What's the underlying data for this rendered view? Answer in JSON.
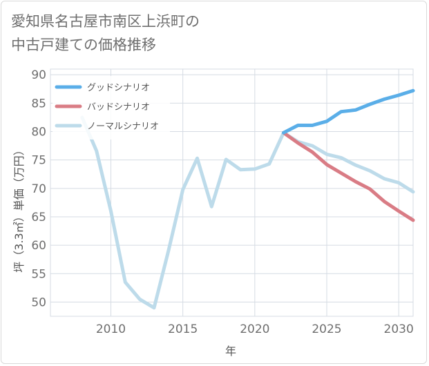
{
  "title": {
    "line1": "愛知県名古屋市南区上浜町の",
    "line2": "中古戸建ての価格推移"
  },
  "chart_data": {
    "type": "line",
    "xlabel": "年",
    "ylabel": "坪（3.3㎡）単価（万円）",
    "xlim": [
      2005.8,
      2031
    ],
    "ylim": [
      47.5,
      91
    ],
    "x_ticks": [
      2010,
      2015,
      2020,
      2025,
      2030
    ],
    "y_ticks": [
      50,
      55,
      60,
      65,
      70,
      75,
      80,
      85,
      90
    ],
    "grid": true,
    "legend_position": "top-left",
    "series": [
      {
        "name": "グッドシナリオ",
        "color": "#5aaee8",
        "x": [
          2022,
          2023,
          2024,
          2025,
          2026,
          2027,
          2028,
          2029,
          2030,
          2031
        ],
        "y": [
          79.8,
          81.1,
          81.1,
          81.8,
          83.5,
          83.8,
          84.8,
          85.7,
          86.4,
          87.2
        ]
      },
      {
        "name": "バッドシナリオ",
        "color": "#d97c85",
        "x": [
          2022,
          2023,
          2024,
          2025,
          2026,
          2027,
          2028,
          2029,
          2030,
          2031
        ],
        "y": [
          79.8,
          78.0,
          76.4,
          74.2,
          72.7,
          71.2,
          69.9,
          67.7,
          66.0,
          64.4
        ]
      },
      {
        "name": "ノーマルシナリオ",
        "color": "#bddbea",
        "x": [
          2008,
          2009,
          2010,
          2011,
          2012,
          2013,
          2014,
          2015,
          2016,
          2017,
          2018,
          2019,
          2020,
          2021,
          2022,
          2023,
          2024,
          2025,
          2026,
          2027,
          2028,
          2029,
          2030,
          2031
        ],
        "y": [
          82.5,
          76.6,
          66.0,
          53.5,
          50.5,
          49.0,
          59.0,
          69.8,
          75.3,
          66.8,
          75.1,
          73.3,
          73.4,
          74.3,
          79.8,
          78.2,
          77.5,
          76.0,
          75.4,
          74.1,
          73.1,
          71.7,
          71.0,
          69.4
        ]
      }
    ]
  }
}
